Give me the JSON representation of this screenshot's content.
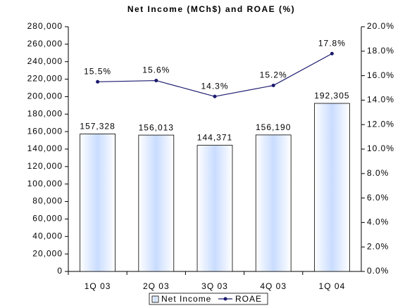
{
  "chart_data": {
    "type": "combo",
    "title": "Net Income (MCh$) and ROAE (%)",
    "categories": [
      "1Q 03",
      "2Q 03",
      "3Q 03",
      "4Q 03",
      "1Q 04"
    ],
    "series": [
      {
        "name": "Net Income",
        "type": "bar",
        "color": "#c9dcff",
        "axis": "y",
        "values": [
          157328,
          156013,
          144371,
          156190,
          192305
        ],
        "value_labels": [
          "157,328",
          "156,013",
          "144,371",
          "156,190",
          "192,305"
        ]
      },
      {
        "name": "ROAE",
        "type": "line",
        "color": "#1a1a6e",
        "axis": "y2",
        "values": [
          15.5,
          15.6,
          14.3,
          15.2,
          17.8
        ],
        "value_labels": [
          "15.5%",
          "15.6%",
          "14.3%",
          "15.2%",
          "17.8%"
        ]
      }
    ],
    "ylim": [
      0,
      280000
    ],
    "yticks": [
      0,
      {
        "value": 20000,
        "label": "20,000"
      },
      {
        "value": 40000,
        "label": "40,000"
      },
      {
        "value": 60000,
        "label": "60,000"
      },
      {
        "value": 80000,
        "label": "80,000"
      },
      {
        "value": 100000,
        "label": "100,000"
      },
      {
        "value": 120000,
        "label": "120,000"
      },
      {
        "value": 140000,
        "label": "140,000"
      },
      {
        "value": 160000,
        "label": "160,000"
      },
      {
        "value": 180000,
        "label": "180,000"
      },
      {
        "value": 200000,
        "label": "200,000"
      },
      {
        "value": 220000,
        "label": "220,000"
      },
      {
        "value": 240000,
        "label": "240,000"
      },
      {
        "value": 260000,
        "label": "260,000"
      },
      {
        "value": 280000,
        "label": "280,000"
      }
    ],
    "y2lim": [
      0,
      20
    ],
    "y2ticks": [
      {
        "value": 0,
        "label": "0.0%"
      },
      {
        "value": 2,
        "label": "2.0%"
      },
      {
        "value": 4,
        "label": "4.0%"
      },
      {
        "value": 6,
        "label": "6.0%"
      },
      {
        "value": 8,
        "label": "8.0%"
      },
      {
        "value": 10,
        "label": "10.0%"
      },
      {
        "value": 12,
        "label": "12.0%"
      },
      {
        "value": 14,
        "label": "14.0%"
      },
      {
        "value": 16,
        "label": "16.0%"
      },
      {
        "value": 18,
        "label": "18.0%"
      },
      {
        "value": 20,
        "label": "20.0%"
      }
    ],
    "legend": "bottom",
    "grid": false
  }
}
